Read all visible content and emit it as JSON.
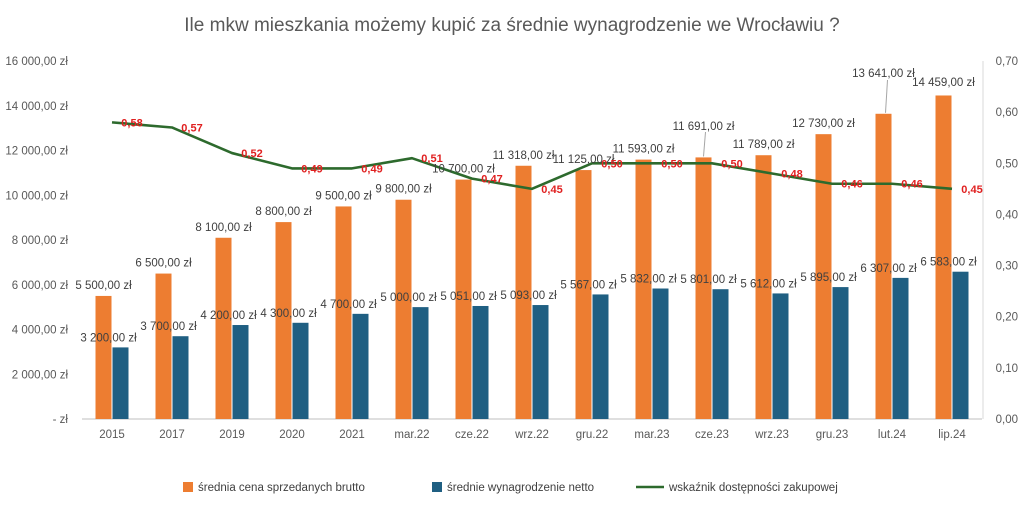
{
  "chart_data": {
    "type": "bar",
    "title": "Ile mkw mieszkania możemy kupić za średnie wynagrodzenie we Wrocławiu ?",
    "categories": [
      "2015",
      "2017",
      "2019",
      "2020",
      "2021",
      "mar.22",
      "cze.22",
      "wrz.22",
      "gru.22",
      "mar.23",
      "cze.23",
      "wrz.23",
      "gru.23",
      "lut.24",
      "lip.24"
    ],
    "series": [
      {
        "name": "średnia cena sprzedanych brutto",
        "type": "bar",
        "axis": "left",
        "color": "#ed7d31",
        "values": [
          5500,
          6500,
          8100,
          8800,
          9500,
          9800,
          10700,
          11318,
          11125,
          11593,
          11691,
          11789,
          12730,
          13641,
          14459
        ],
        "labels": [
          "5 500,00 zł",
          "6 500,00 zł",
          "8 100,00 zł",
          "8 800,00 zł",
          "9 500,00 zł",
          "9 800,00 zł",
          "10 700,00 zł",
          "11 318,00 zł",
          "11 125,00 zł",
          "11 593,00 zł",
          "11 691,00 zł",
          "11 789,00 zł",
          "12 730,00 zł",
          "13 641,00 zł",
          "14 459,00 zł"
        ]
      },
      {
        "name": "średnie wynagrodzenie netto",
        "type": "bar",
        "axis": "left",
        "color": "#1f5f82",
        "values": [
          3200,
          3700,
          4200,
          4300,
          4700,
          5000,
          5051,
          5093,
          5567,
          5832,
          5801,
          5612,
          5895,
          6307,
          6583
        ],
        "labels": [
          "3 200,00 zł",
          "3 700,00 zł",
          "4 200,00 zł",
          "4 300,00 zł",
          "4 700,00 zł",
          "5 000,00 zł",
          "5 051,00 zł",
          "5 093,00 zł",
          "5 567,00 zł",
          "5 832,00 zł",
          "5 801,00 zł",
          "5 612,00 zł",
          "5 895,00 zł",
          "6 307,00 zł",
          "6 583,00 zł"
        ]
      },
      {
        "name": "wskaźnik dostępności zakupowej",
        "type": "line",
        "axis": "right",
        "color": "#2d6a2d",
        "values": [
          0.58,
          0.57,
          0.52,
          0.49,
          0.49,
          0.51,
          0.47,
          0.45,
          0.5,
          0.5,
          0.5,
          0.48,
          0.46,
          0.46,
          0.45
        ],
        "labels": [
          "0,58",
          "0,57",
          "0,52",
          "0,49",
          "0,49",
          "0,51",
          "0,47",
          "0,45",
          "0,50",
          "0,50",
          "0,50",
          "0,48",
          "0,46",
          "0,46",
          "0,45"
        ]
      }
    ],
    "y_left": {
      "range": [
        0,
        16000
      ],
      "ticks": [
        0,
        2000,
        4000,
        6000,
        8000,
        10000,
        12000,
        14000,
        16000
      ],
      "tick_labels": [
        "-   zł",
        "2 000,00 zł",
        "4 000,00 zł",
        "6 000,00 zł",
        "8 000,00 zł",
        "10 000,00 zł",
        "12 000,00 zł",
        "14 000,00 zł",
        "16 000,00 zł"
      ]
    },
    "y_right": {
      "range": [
        0,
        0.7
      ],
      "ticks": [
        0,
        0.1,
        0.2,
        0.3,
        0.4,
        0.5,
        0.6,
        0.7
      ],
      "tick_labels": [
        "0,00",
        "0,10",
        "0,20",
        "0,30",
        "0,40",
        "0,50",
        "0,60",
        "0,70"
      ]
    },
    "grid": false,
    "legend_position": "bottom"
  }
}
